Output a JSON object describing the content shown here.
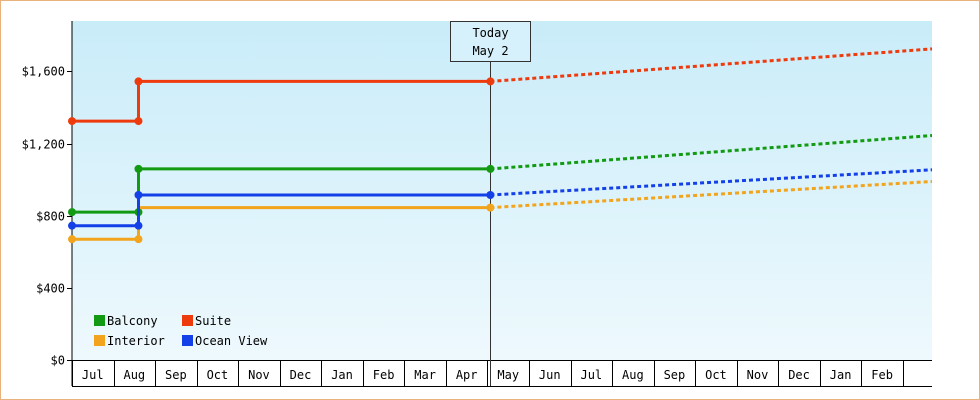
{
  "chart_data": {
    "type": "line",
    "title": "",
    "xlabel": "",
    "ylabel": "",
    "ylim": [
      0,
      1880
    ],
    "y_ticks": [
      {
        "value": 0,
        "label": "$0"
      },
      {
        "value": 400,
        "label": "$400"
      },
      {
        "value": 800,
        "label": "$800"
      },
      {
        "value": 1200,
        "label": "$1,200"
      },
      {
        "value": 1600,
        "label": "$1,600"
      }
    ],
    "months": [
      "Jul",
      "Aug",
      "Sep",
      "Oct",
      "Nov",
      "Dec",
      "Jan",
      "Feb",
      "Mar",
      "Apr",
      "May",
      "Jun",
      "Jul",
      "Aug",
      "Sep",
      "Oct",
      "Nov",
      "Dec",
      "Jan",
      "Feb"
    ],
    "x_range": [
      0,
      20.7
    ],
    "today": {
      "line1": "Today",
      "line2": "May 2",
      "x": 10.07
    },
    "legend_placement": "bottom-left",
    "series": [
      {
        "name": "Balcony",
        "color": "#129a12",
        "historical": [
          {
            "x": 0,
            "y": 820
          },
          {
            "x": 1.6,
            "y": 820
          },
          {
            "x": 1.6,
            "y": 1060
          },
          {
            "x": 10.07,
            "y": 1060
          }
        ],
        "markers": [
          {
            "x": 0,
            "y": 820
          },
          {
            "x": 1.6,
            "y": 820
          },
          {
            "x": 1.6,
            "y": 1060
          },
          {
            "x": 10.07,
            "y": 1060
          }
        ],
        "projected": [
          {
            "x": 10.07,
            "y": 1060
          },
          {
            "x": 20.7,
            "y": 1245
          }
        ]
      },
      {
        "name": "Suite",
        "color": "#ee3b0e",
        "historical": [
          {
            "x": 0,
            "y": 1325
          },
          {
            "x": 1.6,
            "y": 1325
          },
          {
            "x": 1.6,
            "y": 1545
          },
          {
            "x": 10.07,
            "y": 1545
          }
        ],
        "markers": [
          {
            "x": 0,
            "y": 1325
          },
          {
            "x": 1.6,
            "y": 1325
          },
          {
            "x": 1.6,
            "y": 1545
          },
          {
            "x": 10.07,
            "y": 1545
          }
        ],
        "projected": [
          {
            "x": 10.07,
            "y": 1545
          },
          {
            "x": 20.7,
            "y": 1725
          }
        ]
      },
      {
        "name": "Interior",
        "color": "#f1a41c",
        "historical": [
          {
            "x": 0,
            "y": 670
          },
          {
            "x": 1.6,
            "y": 670
          },
          {
            "x": 1.6,
            "y": 845
          },
          {
            "x": 10.07,
            "y": 845
          }
        ],
        "markers": [
          {
            "x": 0,
            "y": 670
          },
          {
            "x": 1.6,
            "y": 670
          },
          {
            "x": 10.07,
            "y": 845
          }
        ],
        "projected": [
          {
            "x": 10.07,
            "y": 845
          },
          {
            "x": 20.7,
            "y": 990
          }
        ]
      },
      {
        "name": "Ocean View",
        "color": "#1440e8",
        "historical": [
          {
            "x": 0,
            "y": 745
          },
          {
            "x": 1.6,
            "y": 745
          },
          {
            "x": 1.6,
            "y": 915
          },
          {
            "x": 10.07,
            "y": 915
          }
        ],
        "markers": [
          {
            "x": 0,
            "y": 745
          },
          {
            "x": 1.6,
            "y": 745
          },
          {
            "x": 1.6,
            "y": 915
          },
          {
            "x": 10.07,
            "y": 915
          }
        ],
        "projected": [
          {
            "x": 10.07,
            "y": 915
          },
          {
            "x": 20.7,
            "y": 1055
          }
        ]
      }
    ]
  }
}
